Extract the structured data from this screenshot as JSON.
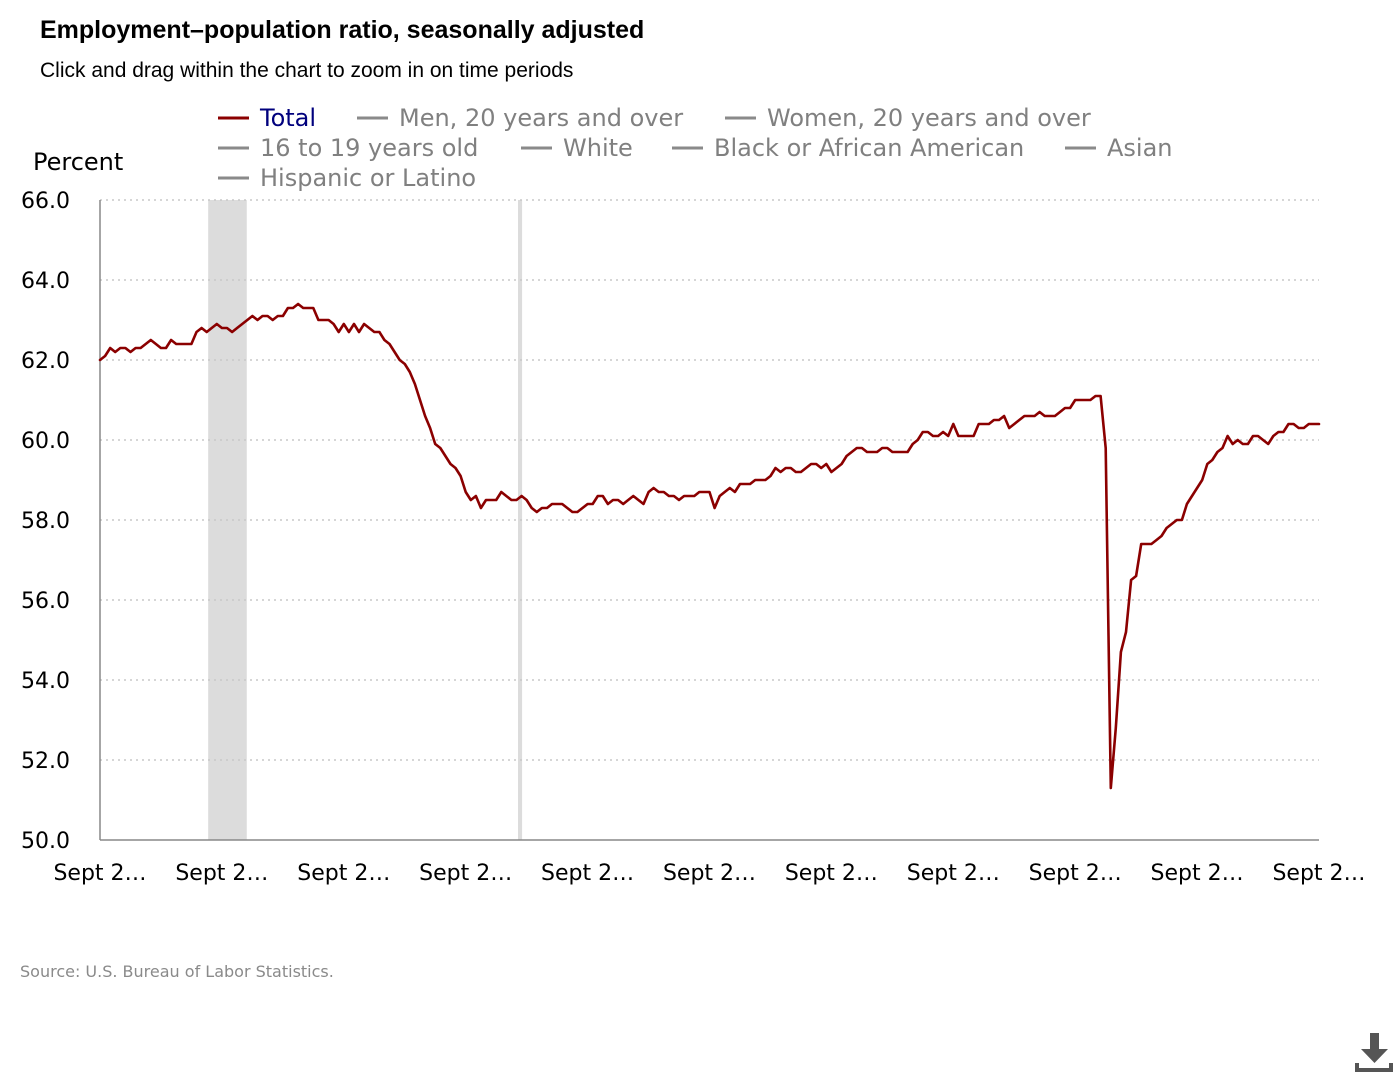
{
  "header": {
    "title": "Employment–population ratio, seasonally adjusted",
    "subtitle": "Click and drag within the chart to zoom in on time periods"
  },
  "footer": {
    "source": "Source: U.S. Bureau of Labor Statistics."
  },
  "download": {
    "icon": "download-icon"
  },
  "colors": {
    "total_series": "#8b0000",
    "inactive_series": "#8a8a8a",
    "active_legend_text": "#00007d",
    "inactive_legend_text": "#808080",
    "recession_band": "#dcdcdc",
    "gridline": "#c8c8c8",
    "axis": "#888888"
  },
  "chart_data": {
    "type": "line",
    "ylabel": "Percent",
    "ylim": [
      50.0,
      66.0
    ],
    "yticks": [
      "50.0",
      "52.0",
      "54.0",
      "56.0",
      "58.0",
      "60.0",
      "62.0",
      "64.0",
      "66.0"
    ],
    "xticks": [
      "Sept 2…",
      "Sept 2…",
      "Sept 2…",
      "Sept 2…",
      "Sept 2…",
      "Sept 2…",
      "Sept 2…",
      "Sept 2…",
      "Sept 2…",
      "Sept 2…",
      "Sept 2…"
    ],
    "grid": true,
    "legend_position": "top",
    "legend": [
      {
        "name": "Total",
        "active": true
      },
      {
        "name": "Men, 20 years and over",
        "active": false
      },
      {
        "name": "Women, 20 years and over",
        "active": false
      },
      {
        "name": "16 to 19 years old",
        "active": false
      },
      {
        "name": "White",
        "active": false
      },
      {
        "name": "Black or African American",
        "active": false
      },
      {
        "name": "Asian",
        "active": false
      },
      {
        "name": "Hispanic or Latino",
        "active": false
      }
    ],
    "x_range": [
      0,
      240
    ],
    "shaded_periods": [
      [
        21.3,
        28.9
      ],
      [
        82.3,
        83.1
      ]
    ],
    "series": [
      {
        "name": "Total",
        "x": [
          0,
          1,
          2,
          3,
          4,
          5,
          6,
          7,
          8,
          9,
          10,
          11,
          12,
          13,
          14,
          15,
          16,
          17,
          18,
          19,
          20,
          21,
          22,
          23,
          24,
          25,
          26,
          27,
          28,
          29,
          30,
          31,
          32,
          33,
          34,
          35,
          36,
          37,
          38,
          39,
          40,
          41,
          42,
          43,
          44,
          45,
          46,
          47,
          48,
          49,
          50,
          51,
          52,
          53,
          54,
          55,
          56,
          57,
          58,
          59,
          60,
          61,
          62,
          63,
          64,
          65,
          66,
          67,
          68,
          69,
          70,
          71,
          72,
          73,
          74,
          75,
          76,
          77,
          78,
          79,
          80,
          81,
          82,
          83,
          84,
          85,
          86,
          87,
          88,
          89,
          90,
          91,
          92,
          93,
          94,
          95,
          96,
          97,
          98,
          99,
          100,
          101,
          102,
          103,
          104,
          105,
          106,
          107,
          108,
          109,
          110,
          111,
          112,
          113,
          114,
          115,
          116,
          117,
          118,
          119,
          120,
          121,
          122,
          123,
          124,
          125,
          126,
          127,
          128,
          129,
          130,
          131,
          132,
          133,
          134,
          135,
          136,
          137,
          138,
          139,
          140,
          141,
          142,
          143,
          144,
          145,
          146,
          147,
          148,
          149,
          150,
          151,
          152,
          153,
          154,
          155,
          156,
          157,
          158,
          159,
          160,
          161,
          162,
          163,
          164,
          165,
          166,
          167,
          168,
          169,
          170,
          171,
          172,
          173,
          174,
          175,
          176,
          177,
          178,
          179,
          180,
          181,
          182,
          183,
          184,
          185,
          186,
          187,
          188,
          189,
          190,
          191,
          192,
          193,
          194,
          195,
          196,
          197,
          198,
          199,
          200,
          201,
          202,
          203,
          204,
          205,
          206,
          207,
          208,
          209,
          210,
          211,
          212,
          213,
          214,
          215,
          216,
          217,
          218,
          219,
          220,
          221,
          222,
          223,
          224,
          225,
          226,
          227,
          228,
          229,
          230,
          231,
          232,
          233,
          234,
          235,
          236,
          237,
          238,
          239,
          240
        ],
        "values": [
          62.0,
          62.1,
          62.3,
          62.2,
          62.3,
          62.3,
          62.2,
          62.3,
          62.3,
          62.4,
          62.5,
          62.4,
          62.3,
          62.3,
          62.5,
          62.4,
          62.4,
          62.4,
          62.4,
          62.7,
          62.8,
          62.7,
          62.8,
          62.9,
          62.8,
          62.8,
          62.7,
          62.8,
          62.9,
          63.0,
          63.1,
          63.0,
          63.1,
          63.1,
          63.0,
          63.1,
          63.1,
          63.3,
          63.3,
          63.4,
          63.3,
          63.3,
          63.3,
          63.0,
          63.0,
          63.0,
          62.9,
          62.7,
          62.9,
          62.7,
          62.9,
          62.7,
          62.9,
          62.8,
          62.7,
          62.7,
          62.5,
          62.4,
          62.2,
          62.0,
          61.9,
          61.7,
          61.4,
          61.0,
          60.6,
          60.3,
          59.9,
          59.8,
          59.6,
          59.4,
          59.3,
          59.1,
          58.7,
          58.5,
          58.6,
          58.3,
          58.5,
          58.5,
          58.5,
          58.7,
          58.6,
          58.5,
          58.5,
          58.6,
          58.5,
          58.3,
          58.2,
          58.3,
          58.3,
          58.4,
          58.4,
          58.4,
          58.3,
          58.2,
          58.2,
          58.3,
          58.4,
          58.4,
          58.6,
          58.6,
          58.4,
          58.5,
          58.5,
          58.4,
          58.5,
          58.6,
          58.5,
          58.4,
          58.7,
          58.8,
          58.7,
          58.7,
          58.6,
          58.6,
          58.5,
          58.6,
          58.6,
          58.6,
          58.7,
          58.7,
          58.7,
          58.3,
          58.6,
          58.7,
          58.8,
          58.7,
          58.9,
          58.9,
          58.9,
          59.0,
          59.0,
          59.0,
          59.1,
          59.3,
          59.2,
          59.3,
          59.3,
          59.2,
          59.2,
          59.3,
          59.4,
          59.4,
          59.3,
          59.4,
          59.2,
          59.3,
          59.4,
          59.6,
          59.7,
          59.8,
          59.8,
          59.7,
          59.7,
          59.7,
          59.8,
          59.8,
          59.7,
          59.7,
          59.7,
          59.7,
          59.9,
          60.0,
          60.2,
          60.2,
          60.1,
          60.1,
          60.2,
          60.1,
          60.4,
          60.1,
          60.1,
          60.1,
          60.1,
          60.4,
          60.4,
          60.4,
          60.5,
          60.5,
          60.6,
          60.3,
          60.4,
          60.5,
          60.6,
          60.6,
          60.6,
          60.7,
          60.6,
          60.6,
          60.6,
          60.7,
          60.8,
          60.8,
          61.0,
          61.0,
          61.0,
          61.0,
          61.1,
          61.1,
          59.8,
          51.3,
          52.8,
          54.7,
          55.2,
          56.5,
          56.6,
          57.4,
          57.4,
          57.4,
          57.5,
          57.6,
          57.8,
          57.9,
          58.0,
          58.0,
          58.4,
          58.6,
          58.8,
          59.0,
          59.4,
          59.5,
          59.7,
          59.8,
          60.1,
          59.9,
          60.0,
          59.9,
          59.9,
          60.1,
          60.1,
          60.0,
          59.9,
          60.1,
          60.2,
          60.2,
          60.4,
          60.4,
          60.3,
          60.3,
          60.4,
          60.4,
          60.4
        ]
      }
    ]
  }
}
